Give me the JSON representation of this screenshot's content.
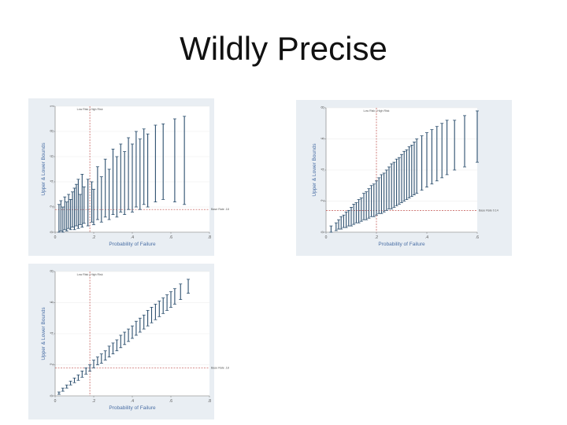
{
  "slide": {
    "title": "Wildly Precise"
  },
  "colors": {
    "panel_bg": "#e9eef3",
    "plot_bg": "#ffffff",
    "bar": "#2c4f6e",
    "ref": "#c0504d",
    "axis_title": "#4a6fa5"
  },
  "chart_data": [
    {
      "type": "scatter",
      "xlabel": "Probability of Failure",
      "ylabel": "Upper & Lower Bounds",
      "xlim": [
        0,
        0.8
      ],
      "ylim": [
        0,
        1
      ],
      "xticks": [
        "0",
        ".2",
        ".4",
        ".6",
        ".8"
      ],
      "yticks": [
        "0",
        ".2",
        ".4",
        ".6",
        ".8",
        "1"
      ],
      "xtick_values": [
        0,
        0.2,
        0.4,
        0.6,
        0.8
      ],
      "ytick_values": [
        0,
        0.2,
        0.4,
        0.6,
        0.8,
        1.0
      ],
      "legend_text": "Low Risk | High Risk",
      "reference_x": 0.18,
      "reference_y": 0.18,
      "reference_y_label": "Base Rate .18",
      "intervals": [
        {
          "x": 0.02,
          "lo": 0.0,
          "hi": 0.22
        },
        {
          "x": 0.03,
          "lo": 0.01,
          "hi": 0.25
        },
        {
          "x": 0.04,
          "lo": 0.0,
          "hi": 0.2
        },
        {
          "x": 0.05,
          "lo": 0.02,
          "hi": 0.28
        },
        {
          "x": 0.06,
          "lo": 0.01,
          "hi": 0.24
        },
        {
          "x": 0.07,
          "lo": 0.03,
          "hi": 0.3
        },
        {
          "x": 0.08,
          "lo": 0.02,
          "hi": 0.26
        },
        {
          "x": 0.09,
          "lo": 0.04,
          "hi": 0.32
        },
        {
          "x": 0.1,
          "lo": 0.02,
          "hi": 0.35
        },
        {
          "x": 0.11,
          "lo": 0.05,
          "hi": 0.38
        },
        {
          "x": 0.12,
          "lo": 0.03,
          "hi": 0.42
        },
        {
          "x": 0.13,
          "lo": 0.06,
          "hi": 0.3
        },
        {
          "x": 0.14,
          "lo": 0.04,
          "hi": 0.46
        },
        {
          "x": 0.15,
          "lo": 0.07,
          "hi": 0.36
        },
        {
          "x": 0.17,
          "lo": 0.05,
          "hi": 0.42
        },
        {
          "x": 0.19,
          "lo": 0.08,
          "hi": 0.4
        },
        {
          "x": 0.2,
          "lo": 0.06,
          "hi": 0.34
        },
        {
          "x": 0.22,
          "lo": 0.1,
          "hi": 0.52
        },
        {
          "x": 0.24,
          "lo": 0.08,
          "hi": 0.44
        },
        {
          "x": 0.26,
          "lo": 0.12,
          "hi": 0.58
        },
        {
          "x": 0.28,
          "lo": 0.1,
          "hi": 0.5
        },
        {
          "x": 0.3,
          "lo": 0.14,
          "hi": 0.66
        },
        {
          "x": 0.32,
          "lo": 0.12,
          "hi": 0.6
        },
        {
          "x": 0.34,
          "lo": 0.16,
          "hi": 0.7
        },
        {
          "x": 0.36,
          "lo": 0.14,
          "hi": 0.64
        },
        {
          "x": 0.38,
          "lo": 0.18,
          "hi": 0.75
        },
        {
          "x": 0.4,
          "lo": 0.16,
          "hi": 0.7
        },
        {
          "x": 0.42,
          "lo": 0.2,
          "hi": 0.8
        },
        {
          "x": 0.44,
          "lo": 0.18,
          "hi": 0.74
        },
        {
          "x": 0.46,
          "lo": 0.22,
          "hi": 0.82
        },
        {
          "x": 0.48,
          "lo": 0.2,
          "hi": 0.78
        },
        {
          "x": 0.52,
          "lo": 0.24,
          "hi": 0.85
        },
        {
          "x": 0.56,
          "lo": 0.26,
          "hi": 0.86
        },
        {
          "x": 0.62,
          "lo": 0.24,
          "hi": 0.9
        },
        {
          "x": 0.67,
          "lo": 0.22,
          "hi": 0.92
        }
      ]
    },
    {
      "type": "scatter",
      "xlabel": "Probability of Failure",
      "ylabel": "Upper & Lower Bounds",
      "xlim": [
        0,
        0.6
      ],
      "ylim": [
        0,
        0.8
      ],
      "xticks": [
        "0",
        ".2",
        ".4",
        ".6"
      ],
      "yticks": [
        "0",
        ".2",
        ".4",
        ".6",
        ".8"
      ],
      "xtick_values": [
        0,
        0.2,
        0.4,
        0.6
      ],
      "ytick_values": [
        0,
        0.2,
        0.4,
        0.6,
        0.8
      ],
      "legend_text": "Low Risk | High Risk",
      "reference_x": 0.2,
      "reference_y": 0.14,
      "reference_y_label": "Base Rate 0.14",
      "intervals": [
        {
          "x": 0.02,
          "lo": 0.0,
          "hi": 0.04
        },
        {
          "x": 0.04,
          "lo": 0.01,
          "hi": 0.06
        },
        {
          "x": 0.05,
          "lo": 0.02,
          "hi": 0.08
        },
        {
          "x": 0.06,
          "lo": 0.02,
          "hi": 0.1
        },
        {
          "x": 0.07,
          "lo": 0.03,
          "hi": 0.11
        },
        {
          "x": 0.08,
          "lo": 0.03,
          "hi": 0.13
        },
        {
          "x": 0.09,
          "lo": 0.04,
          "hi": 0.14
        },
        {
          "x": 0.1,
          "lo": 0.04,
          "hi": 0.16
        },
        {
          "x": 0.11,
          "lo": 0.05,
          "hi": 0.18
        },
        {
          "x": 0.12,
          "lo": 0.06,
          "hi": 0.19
        },
        {
          "x": 0.13,
          "lo": 0.06,
          "hi": 0.21
        },
        {
          "x": 0.14,
          "lo": 0.07,
          "hi": 0.22
        },
        {
          "x": 0.15,
          "lo": 0.08,
          "hi": 0.25
        },
        {
          "x": 0.16,
          "lo": 0.08,
          "hi": 0.26
        },
        {
          "x": 0.17,
          "lo": 0.09,
          "hi": 0.28
        },
        {
          "x": 0.18,
          "lo": 0.1,
          "hi": 0.3
        },
        {
          "x": 0.19,
          "lo": 0.1,
          "hi": 0.31
        },
        {
          "x": 0.2,
          "lo": 0.11,
          "hi": 0.33
        },
        {
          "x": 0.21,
          "lo": 0.12,
          "hi": 0.35
        },
        {
          "x": 0.22,
          "lo": 0.12,
          "hi": 0.37
        },
        {
          "x": 0.23,
          "lo": 0.13,
          "hi": 0.38
        },
        {
          "x": 0.24,
          "lo": 0.14,
          "hi": 0.4
        },
        {
          "x": 0.25,
          "lo": 0.15,
          "hi": 0.42
        },
        {
          "x": 0.26,
          "lo": 0.15,
          "hi": 0.44
        },
        {
          "x": 0.27,
          "lo": 0.16,
          "hi": 0.45
        },
        {
          "x": 0.28,
          "lo": 0.17,
          "hi": 0.47
        },
        {
          "x": 0.29,
          "lo": 0.18,
          "hi": 0.48
        },
        {
          "x": 0.3,
          "lo": 0.19,
          "hi": 0.5
        },
        {
          "x": 0.31,
          "lo": 0.2,
          "hi": 0.52
        },
        {
          "x": 0.32,
          "lo": 0.21,
          "hi": 0.53
        },
        {
          "x": 0.33,
          "lo": 0.22,
          "hi": 0.55
        },
        {
          "x": 0.34,
          "lo": 0.23,
          "hi": 0.56
        },
        {
          "x": 0.35,
          "lo": 0.24,
          "hi": 0.58
        },
        {
          "x": 0.36,
          "lo": 0.25,
          "hi": 0.6
        },
        {
          "x": 0.38,
          "lo": 0.27,
          "hi": 0.62
        },
        {
          "x": 0.4,
          "lo": 0.29,
          "hi": 0.64
        },
        {
          "x": 0.42,
          "lo": 0.31,
          "hi": 0.66
        },
        {
          "x": 0.44,
          "lo": 0.33,
          "hi": 0.68
        },
        {
          "x": 0.46,
          "lo": 0.35,
          "hi": 0.7
        },
        {
          "x": 0.48,
          "lo": 0.37,
          "hi": 0.72
        },
        {
          "x": 0.51,
          "lo": 0.4,
          "hi": 0.72
        },
        {
          "x": 0.55,
          "lo": 0.42,
          "hi": 0.75
        },
        {
          "x": 0.6,
          "lo": 0.45,
          "hi": 0.78
        }
      ]
    },
    {
      "type": "scatter",
      "xlabel": "Probability of Failure",
      "ylabel": "Upper & Lower Bounds",
      "xlim": [
        0,
        0.8
      ],
      "ylim": [
        0,
        0.8
      ],
      "xticks": [
        "0",
        ".2",
        ".4",
        ".6",
        ".8"
      ],
      "yticks": [
        "0",
        ".2",
        ".4",
        ".6",
        ".8"
      ],
      "xtick_values": [
        0,
        0.2,
        0.4,
        0.6,
        0.8
      ],
      "ytick_values": [
        0,
        0.2,
        0.4,
        0.6,
        0.8
      ],
      "legend_text": "Low Risk | High Risk",
      "reference_x": 0.18,
      "reference_y": 0.18,
      "reference_y_label": "Base Rate .18",
      "intervals": [
        {
          "x": 0.02,
          "lo": 0.01,
          "hi": 0.025
        },
        {
          "x": 0.04,
          "lo": 0.03,
          "hi": 0.05
        },
        {
          "x": 0.06,
          "lo": 0.05,
          "hi": 0.07
        },
        {
          "x": 0.08,
          "lo": 0.07,
          "hi": 0.095
        },
        {
          "x": 0.1,
          "lo": 0.085,
          "hi": 0.115
        },
        {
          "x": 0.12,
          "lo": 0.1,
          "hi": 0.135
        },
        {
          "x": 0.14,
          "lo": 0.12,
          "hi": 0.16
        },
        {
          "x": 0.16,
          "lo": 0.14,
          "hi": 0.18
        },
        {
          "x": 0.18,
          "lo": 0.16,
          "hi": 0.2
        },
        {
          "x": 0.2,
          "lo": 0.18,
          "hi": 0.23
        },
        {
          "x": 0.22,
          "lo": 0.2,
          "hi": 0.25
        },
        {
          "x": 0.24,
          "lo": 0.21,
          "hi": 0.27
        },
        {
          "x": 0.26,
          "lo": 0.23,
          "hi": 0.29
        },
        {
          "x": 0.28,
          "lo": 0.25,
          "hi": 0.32
        },
        {
          "x": 0.3,
          "lo": 0.27,
          "hi": 0.34
        },
        {
          "x": 0.32,
          "lo": 0.29,
          "hi": 0.36
        },
        {
          "x": 0.34,
          "lo": 0.31,
          "hi": 0.39
        },
        {
          "x": 0.36,
          "lo": 0.33,
          "hi": 0.41
        },
        {
          "x": 0.38,
          "lo": 0.35,
          "hi": 0.43
        },
        {
          "x": 0.4,
          "lo": 0.37,
          "hi": 0.45
        },
        {
          "x": 0.42,
          "lo": 0.39,
          "hi": 0.48
        },
        {
          "x": 0.44,
          "lo": 0.41,
          "hi": 0.5
        },
        {
          "x": 0.46,
          "lo": 0.43,
          "hi": 0.52
        },
        {
          "x": 0.48,
          "lo": 0.45,
          "hi": 0.55
        },
        {
          "x": 0.5,
          "lo": 0.47,
          "hi": 0.57
        },
        {
          "x": 0.52,
          "lo": 0.49,
          "hi": 0.59
        },
        {
          "x": 0.54,
          "lo": 0.51,
          "hi": 0.61
        },
        {
          "x": 0.56,
          "lo": 0.53,
          "hi": 0.63
        },
        {
          "x": 0.58,
          "lo": 0.55,
          "hi": 0.65
        },
        {
          "x": 0.6,
          "lo": 0.57,
          "hi": 0.67
        },
        {
          "x": 0.62,
          "lo": 0.59,
          "hi": 0.69
        },
        {
          "x": 0.65,
          "lo": 0.62,
          "hi": 0.72
        },
        {
          "x": 0.69,
          "lo": 0.66,
          "hi": 0.75
        }
      ]
    }
  ]
}
